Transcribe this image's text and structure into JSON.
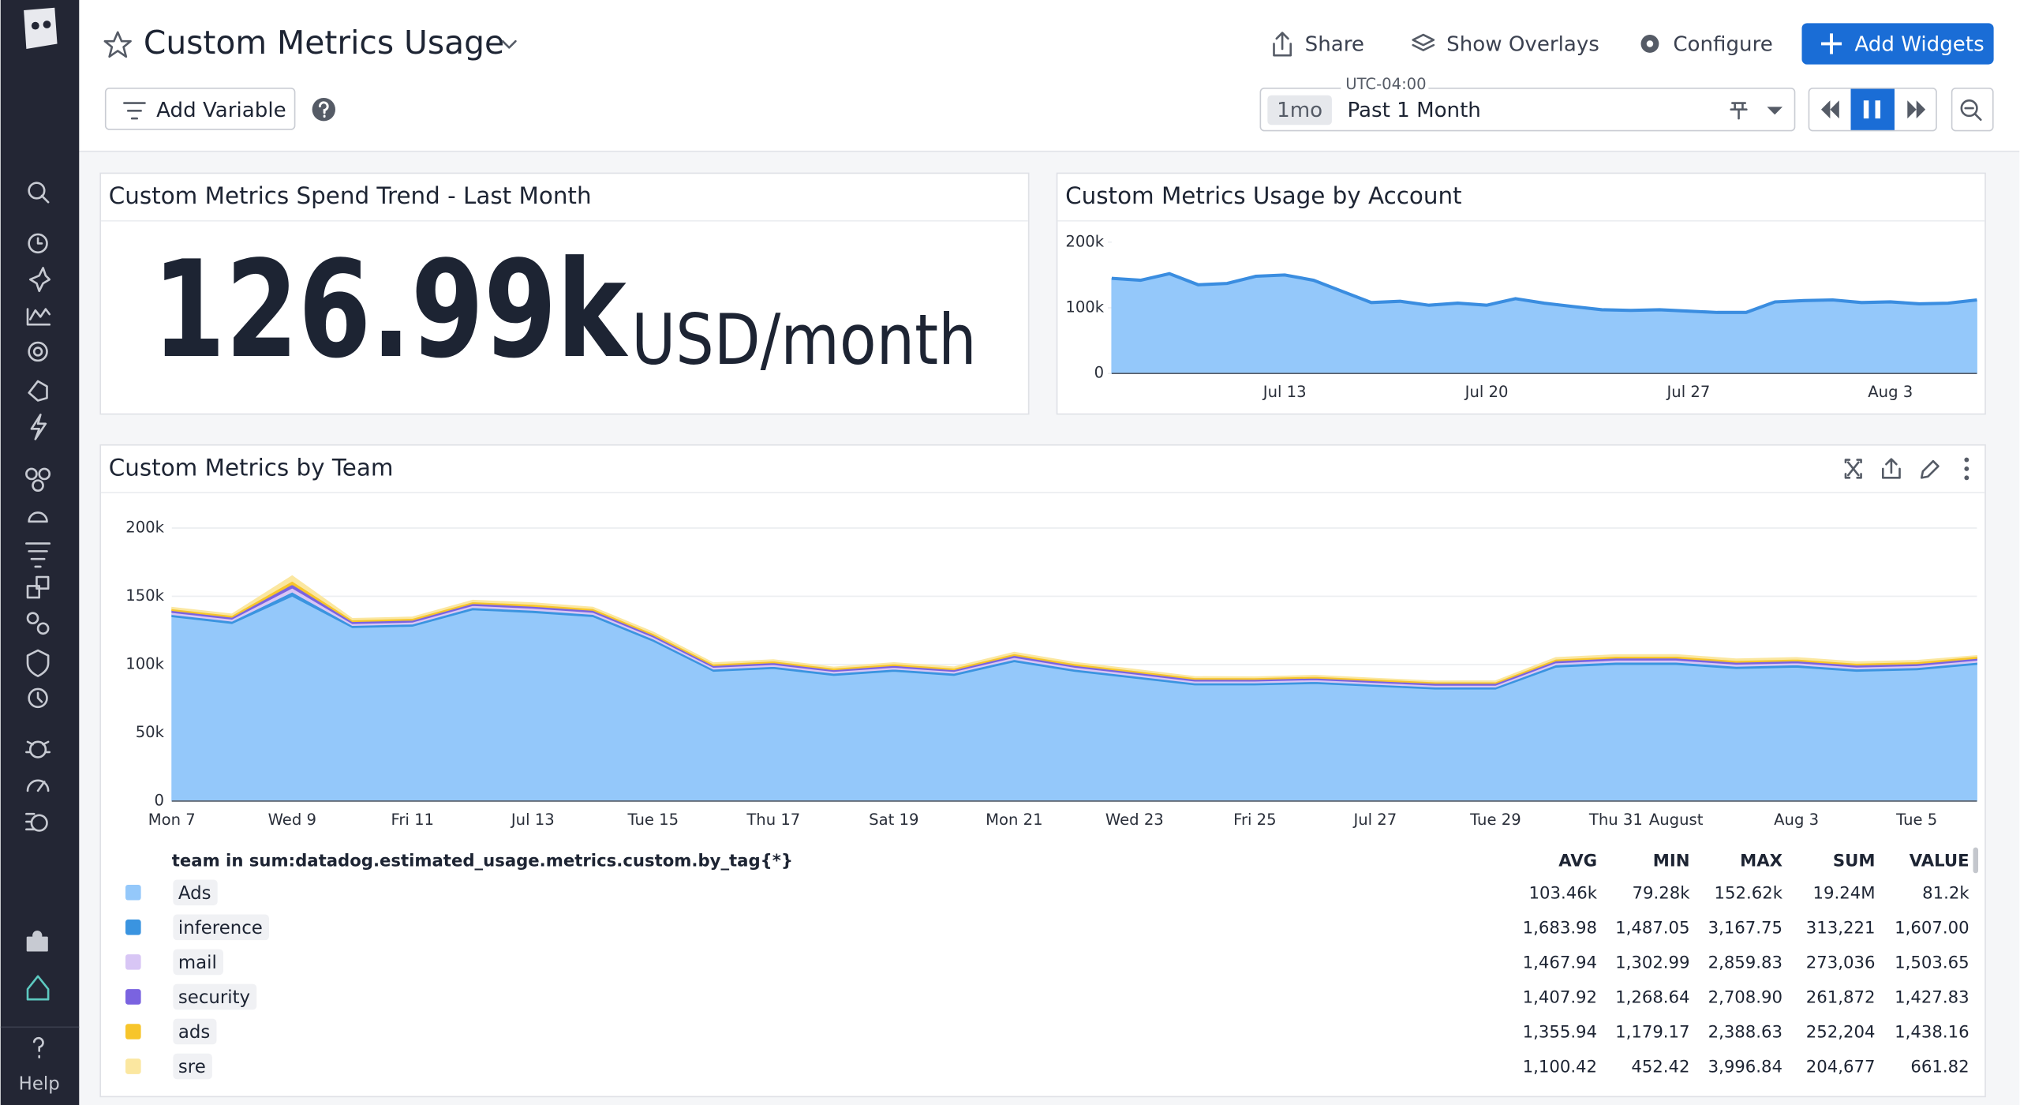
{
  "header": {
    "title": "Custom Metrics Usage",
    "share": "Share",
    "show_overlays": "Show Overlays",
    "configure": "Configure",
    "add_widgets": "Add Widgets",
    "add_variable": "Add Variable",
    "timezone": "UTC-04:00",
    "time_badge": "1mo",
    "time_range": "Past 1 Month"
  },
  "sidebar": {
    "help": "Help"
  },
  "widgets": [
    {
      "title": "Custom Metrics Spend Trend - Last Month",
      "value": "126.99k",
      "unit": "USD/month"
    },
    {
      "title": "Custom Metrics Usage by Account",
      "chart": {
        "type": "area",
        "line_color": "#3a8de0",
        "categories": [
          null,
          null,
          null,
          null,
          null,
          null,
          "Jul 13",
          null,
          null,
          null,
          null,
          null,
          null,
          "Jul 20",
          null,
          null,
          null,
          null,
          null,
          null,
          "Jul 27",
          null,
          null,
          null,
          null,
          null,
          null,
          "Aug 3",
          null,
          null,
          null
        ],
        "series": [
          {
            "color": "#94c8fa",
            "values": [
              145000,
              142000,
              152000,
              135000,
              137000,
              148000,
              150000,
              142000,
              125000,
              108000,
              110000,
              104000,
              107000,
              104000,
              114000,
              107000,
              102000,
              97000,
              96000,
              97000,
              95000,
              93000,
              93000,
              109000,
              111000,
              112000,
              108000,
              109000,
              106000,
              107000,
              112000
            ]
          }
        ],
        "ylim": [
          0,
          200000
        ],
        "yticks": [
          0,
          {
            "value": 100000,
            "label": "100k"
          },
          {
            "value": 200000,
            "label": "200k"
          }
        ]
      }
    },
    {
      "title": "Custom Metrics by Team",
      "chart": {
        "type": "area",
        "stacked": true,
        "grid": true,
        "categories": [
          "Mon 7",
          null,
          "Wed 9",
          null,
          "Fri 11",
          null,
          "Jul 13",
          null,
          "Tue 15",
          null,
          "Thu 17",
          null,
          "Sat 19",
          null,
          "Mon 21",
          null,
          "Wed 23",
          null,
          "Fri 25",
          null,
          "Jul 27",
          null,
          "Tue 29",
          null,
          "Thu 31",
          "August",
          null,
          "Aug 3",
          null,
          "Tue 5",
          null
        ],
        "series": [
          {
            "name": "Ads",
            "color": "#94c8fa",
            "values": [
              135000,
              130000,
              150000,
              127000,
              128000,
              140000,
              138000,
              135000,
              117000,
              95000,
              97000,
              92000,
              95000,
              92000,
              102000,
              95000,
              90000,
              85000,
              85000,
              86000,
              84000,
              82000,
              82000,
              98000,
              100000,
              100000,
              97000,
              98000,
              95000,
              96000,
              100000
            ]
          },
          {
            "name": "inference",
            "color": "#3a94e0",
            "values": [
              1650,
              1700,
              3160,
              1600,
              1620,
              1690,
              1720,
              1700,
              1650,
              1560,
              1600,
              1540,
              1580,
              1550,
              1700,
              1620,
              1600,
              1540,
              1500,
              1520,
              1490,
              1500,
              1510,
              1700,
              1720,
              1730,
              1690,
              1700,
              1680,
              1690,
              1610
            ]
          },
          {
            "name": "mail",
            "color": "#d8c6f5",
            "values": [
              1450,
              1480,
              2850,
              1420,
              1430,
              1480,
              1500,
              1470,
              1420,
              1330,
              1380,
              1320,
              1350,
              1330,
              1460,
              1400,
              1380,
              1330,
              1310,
              1320,
              1300,
              1310,
              1310,
              1480,
              1500,
              1510,
              1470,
              1480,
              1460,
              1470,
              1500
            ]
          },
          {
            "name": "security",
            "color": "#7a63e0",
            "values": [
              1400,
              1420,
              2700,
              1380,
              1390,
              1430,
              1450,
              1420,
              1380,
              1300,
              1340,
              1280,
              1310,
              1290,
              1410,
              1360,
              1340,
              1290,
              1280,
              1290,
              1270,
              1280,
              1280,
              1430,
              1450,
              1460,
              1420,
              1430,
              1410,
              1420,
              1430
            ]
          },
          {
            "name": "ads",
            "color": "#f7c52b",
            "values": [
              1350,
              1370,
              2380,
              1330,
              1340,
              1380,
              1400,
              1370,
              1330,
              1220,
              1260,
              1200,
              1230,
              1210,
              1360,
              1300,
              1280,
              1210,
              1190,
              1200,
              1180,
              1190,
              1190,
              1380,
              1400,
              1410,
              1370,
              1380,
              1360,
              1370,
              1440
            ]
          },
          {
            "name": "sre",
            "color": "#fbe7a0",
            "values": [
              1100,
              1150,
              3990,
              1050,
              1080,
              1150,
              1200,
              1140,
              1080,
              900,
              980,
              850,
              920,
              880,
              1120,
              1010,
              960,
              840,
              800,
              820,
              760,
              780,
              790,
              1180,
              1220,
              1240,
              1160,
              1180,
              1150,
              1170,
              660
            ]
          }
        ],
        "ylim": [
          0,
          200000
        ],
        "yticks": [
          0,
          {
            "value": 50000,
            "label": "50k"
          },
          {
            "value": 100000,
            "label": "100k"
          },
          {
            "value": 150000,
            "label": "150k"
          },
          {
            "value": 200000,
            "label": "200k"
          }
        ]
      },
      "table": {
        "query": "team in sum:datadog.estimated_usage.metrics.custom.by_tag{*}",
        "columns": [
          "AVG",
          "MIN",
          "MAX",
          "SUM",
          "VALUE"
        ],
        "rows": [
          [
            "103.46k",
            "79.28k",
            "152.62k",
            "19.24M",
            "81.2k"
          ],
          [
            "1,683.98",
            "1,487.05",
            "3,167.75",
            "313,221",
            "1,607.00"
          ],
          [
            "1,467.94",
            "1,302.99",
            "2,859.83",
            "273,036",
            "1,503.65"
          ],
          [
            "1,407.92",
            "1,268.64",
            "2,708.90",
            "261,872",
            "1,427.83"
          ],
          [
            "1,355.94",
            "1,179.17",
            "2,388.63",
            "252,204",
            "1,438.16"
          ],
          [
            "1,100.42",
            "452.42",
            "3,996.84",
            "204,677",
            "661.82"
          ]
        ]
      }
    }
  ]
}
